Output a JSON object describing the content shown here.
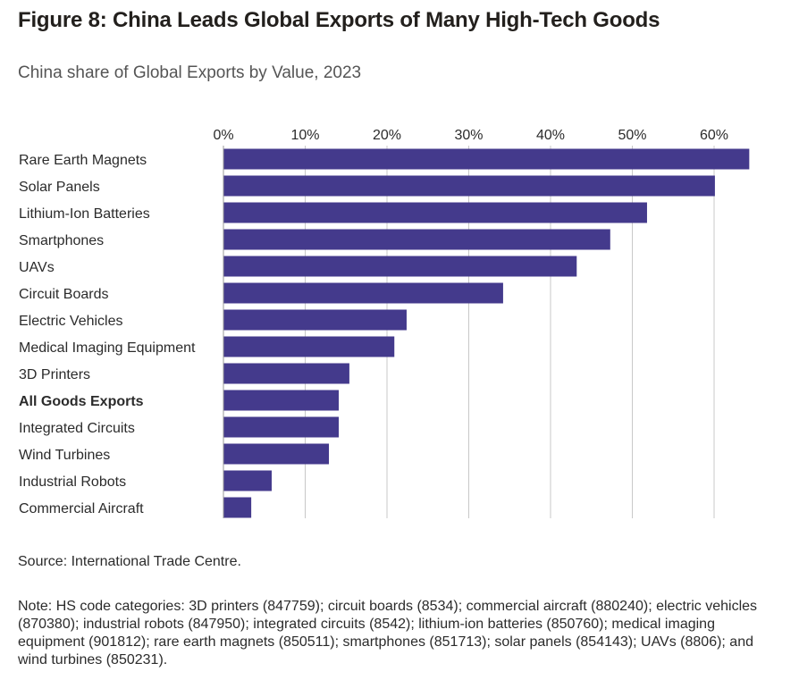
{
  "header": {
    "title": "Figure 8: China Leads Global Exports of Many High-Tech Goods",
    "subtitle": "China share of Global Exports by Value, 2023"
  },
  "footer": {
    "source": "Source: International Trade Centre.",
    "note": "Note: HS code categories: 3D printers (847759); circuit boards (8534); commercial aircraft (880240); electric vehicles (870380); industrial robots (847950); integrated circuits (8542); lithium-ion batteries (850760); medical imaging equipment (901812); rare earth magnets (850511); smartphones (851713); solar panels (854143); UAVs (8806); and wind turbines (850231)."
  },
  "colors": {
    "bar": "#443a8c",
    "grid": "#c8c8c8",
    "text": "#2b2b2b"
  },
  "chart_data": {
    "type": "bar",
    "orientation": "horizontal",
    "title": "Figure 8: China Leads Global Exports of Many High-Tech Goods",
    "subtitle": "China share of Global Exports by Value, 2023",
    "categories": [
      "Rare Earth Magnets",
      "Solar Panels",
      "Lithium-Ion Batteries",
      "Smartphones",
      "UAVs",
      "Circuit Boards",
      "Electric Vehicles",
      "Medical Imaging Equipment",
      "3D Printers",
      "All Goods Exports",
      "Integrated Circuits",
      "Wind Turbines",
      "Industrial Robots",
      "Commercial Aircraft"
    ],
    "bold_categories": [
      "All Goods Exports"
    ],
    "values": [
      64.3,
      60.1,
      51.8,
      47.3,
      43.2,
      34.2,
      22.4,
      20.9,
      15.4,
      14.1,
      14.1,
      12.9,
      5.9,
      3.4
    ],
    "unit": "%",
    "xlim": [
      0,
      65
    ],
    "xticks": [
      0,
      10,
      20,
      30,
      40,
      50,
      60
    ],
    "xtick_labels": [
      "0%",
      "10%",
      "20%",
      "30%",
      "40%",
      "50%",
      "60%"
    ],
    "xaxis_position": "top",
    "grid": true,
    "legend": "none"
  }
}
